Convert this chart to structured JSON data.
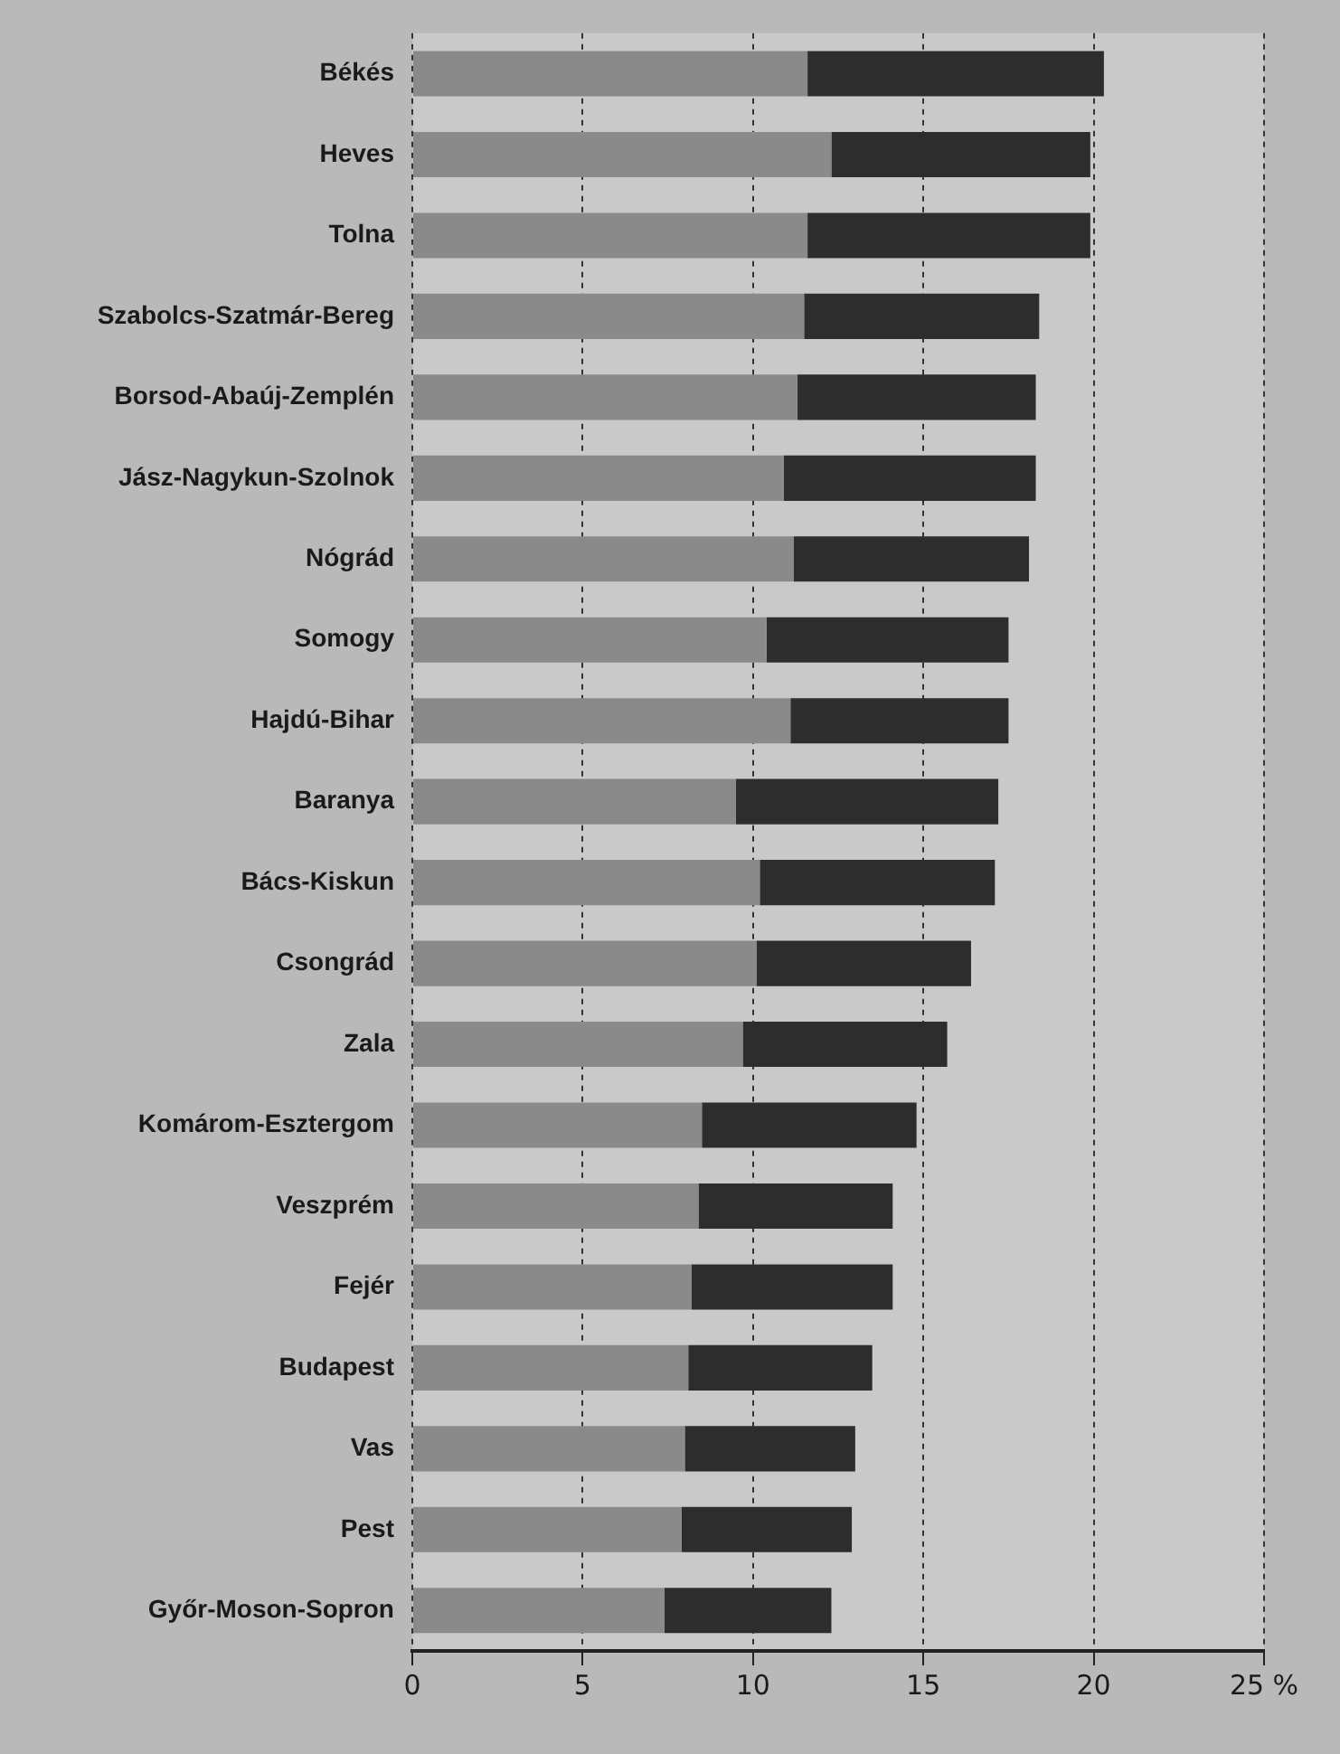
{
  "chart_data": {
    "type": "bar",
    "orientation": "horizontal",
    "stacked": true,
    "categories": [
      "Békés",
      "Heves",
      "Tolna",
      "Szabolcs-Szatmár-Bereg",
      "Borsod-Abaúj-Zemplén",
      "Jász-Nagykun-Szolnok",
      "Nógrád",
      "Somogy",
      "Hajdú-Bihar",
      "Baranya",
      "Bács-Kiskun",
      "Csongrád",
      "Zala",
      "Komárom-Esztergom",
      "Veszprém",
      "Fejér",
      "Budapest",
      "Vas",
      "Pest",
      "Győr-Moson-Sopron"
    ],
    "series": [
      {
        "color": "#8a8a8a",
        "values": [
          11.6,
          12.3,
          11.6,
          11.5,
          11.3,
          10.9,
          11.2,
          10.4,
          11.1,
          9.5,
          10.2,
          10.1,
          9.7,
          8.5,
          8.4,
          8.2,
          8.1,
          8.0,
          7.9,
          7.4
        ]
      },
      {
        "color": "#2d2d2d",
        "values": [
          8.7,
          7.6,
          8.3,
          6.9,
          7.0,
          7.4,
          6.9,
          7.1,
          6.4,
          7.7,
          6.9,
          6.3,
          6.0,
          6.3,
          5.7,
          5.9,
          5.4,
          5.0,
          5.0,
          4.9
        ]
      }
    ],
    "xlim": [
      0,
      25
    ],
    "xticks": [
      0,
      5,
      10,
      15,
      20,
      {
        "value": 25,
        "label": "25 %"
      }
    ],
    "grid": "x",
    "legend": false
  }
}
